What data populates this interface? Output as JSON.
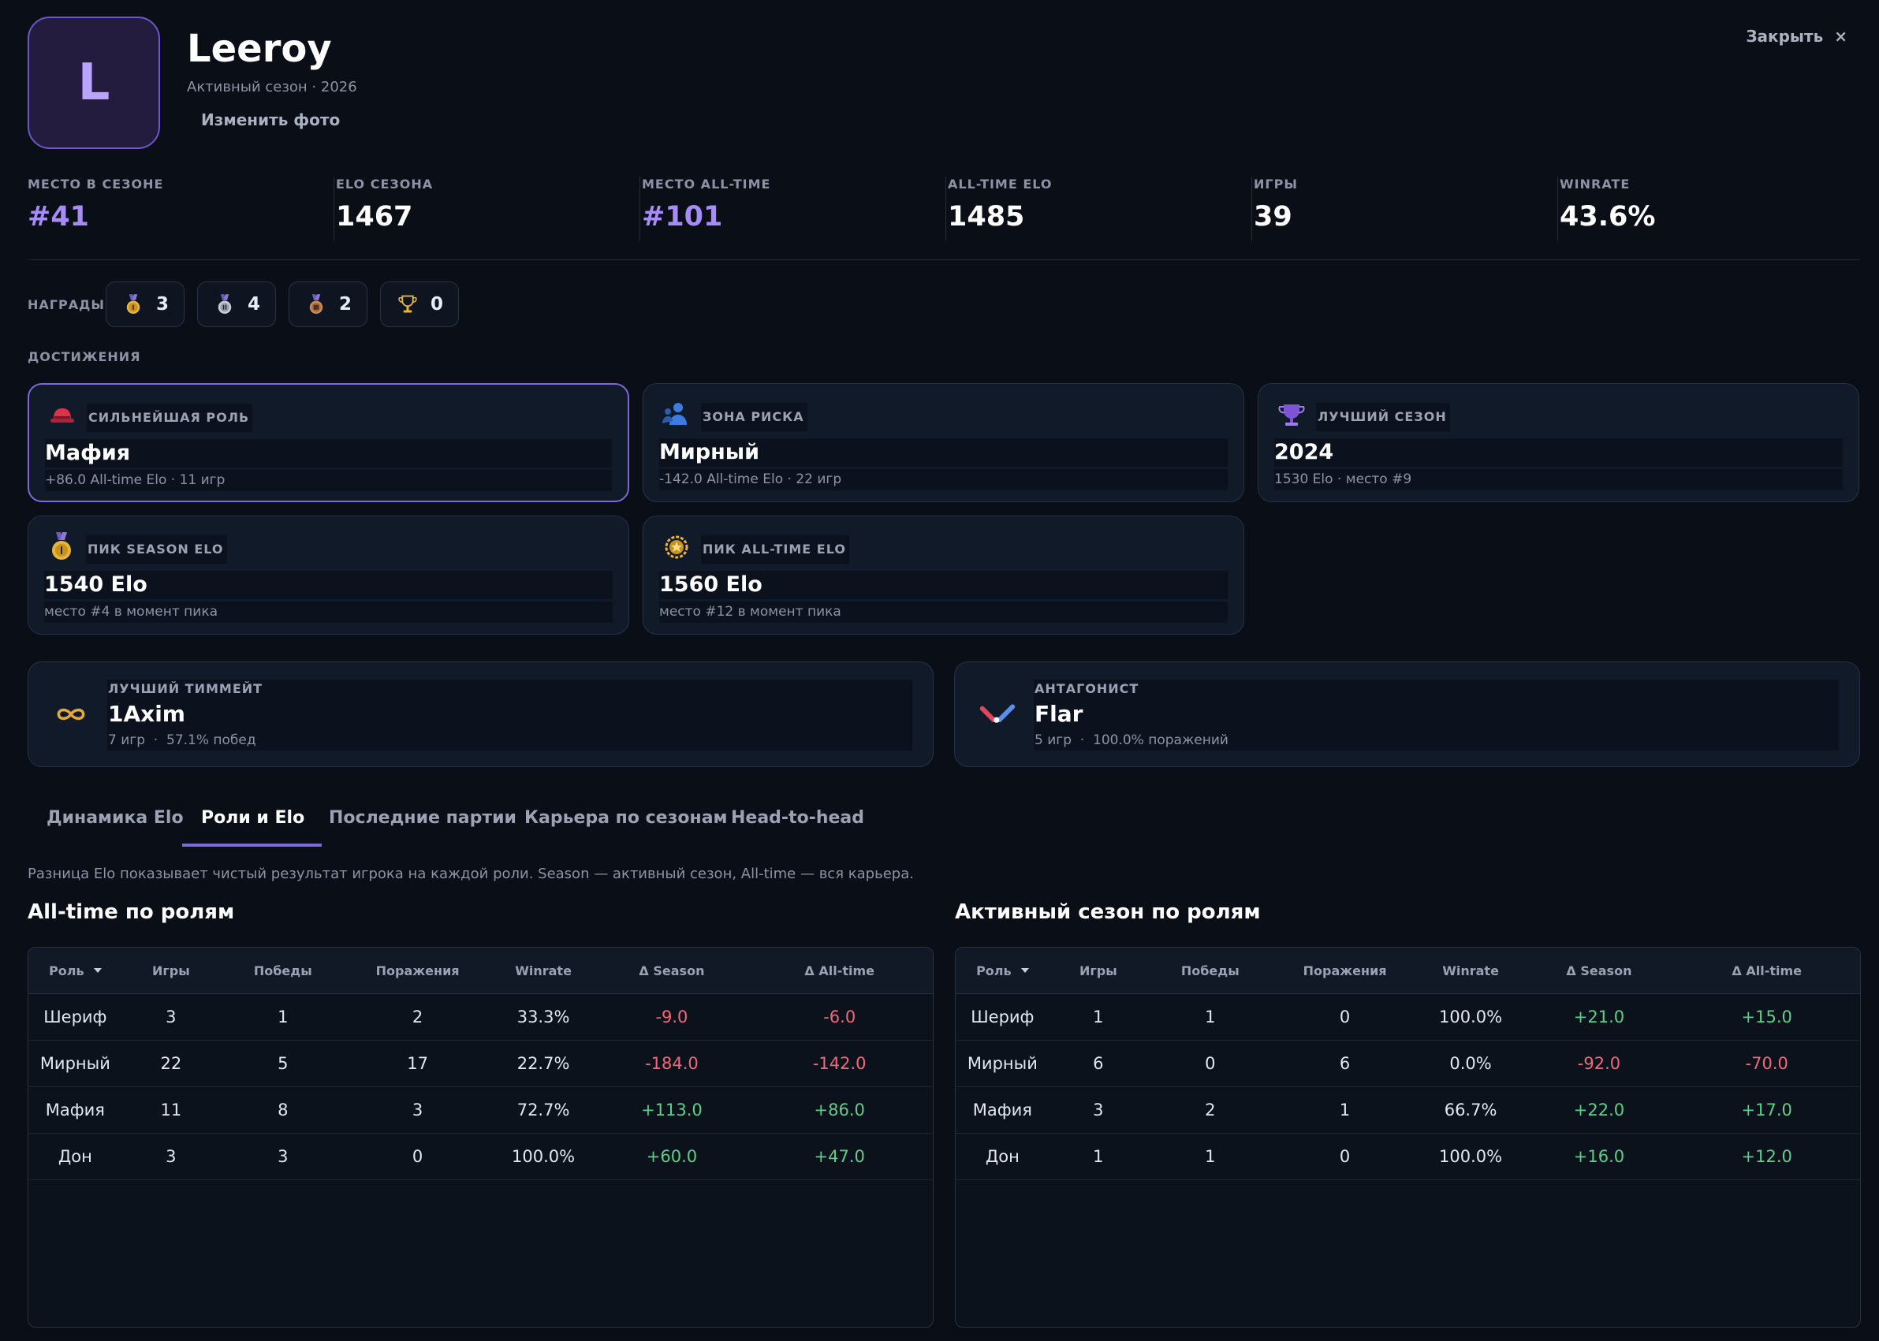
{
  "header": {
    "avatar": "L",
    "name": "Leeroy",
    "subtitle": "Активный сезон · 2026",
    "change_photo": "Изменить фото",
    "close": "Закрыть",
    "close_icon": "×"
  },
  "stats": [
    {
      "label": "МЕСТО В СЕЗОНЕ",
      "value": "#41",
      "accent": true
    },
    {
      "label": "ELO СЕЗОНА",
      "value": "1467",
      "accent": false
    },
    {
      "label": "МЕСТО ALL-TIME",
      "value": "#101",
      "accent": true
    },
    {
      "label": "ALL-TIME ELO",
      "value": "1485",
      "accent": false
    },
    {
      "label": "ИГРЫ",
      "value": "39",
      "accent": false
    },
    {
      "label": "WINRATE",
      "value": "43.6%",
      "accent": false
    }
  ],
  "awards": {
    "label": "НАГРАДЫ",
    "items": [
      {
        "kind": "gold",
        "count": 3
      },
      {
        "kind": "silver",
        "count": 4
      },
      {
        "kind": "bronze",
        "count": 2
      },
      {
        "kind": "trophy",
        "count": 0
      }
    ]
  },
  "achievements": {
    "label": "ДОСТИЖЕНИЯ",
    "cards": [
      {
        "icon": "hat",
        "title": "СИЛЬНЕЙШАЯ РОЛЬ",
        "value": "Мафия",
        "detail": "+86.0 All-time Elo · 11 игр",
        "highlight": true
      },
      {
        "icon": "people",
        "title": "ЗОНА РИСКА",
        "value": "Мирный",
        "detail": "-142.0 All-time Elo · 22 игр",
        "highlight": false
      },
      {
        "icon": "cup",
        "title": "ЛУЧШИЙ СЕЗОН",
        "value": "2024",
        "detail": "1530 Elo · место #9",
        "highlight": false
      },
      {
        "icon": "medal",
        "title": "ПИК SEASON ELO",
        "value": "1540 Elo",
        "detail": "место #4 в момент пика",
        "highlight": false
      },
      {
        "icon": "star",
        "title": "ПИК ALL-TIME ELO",
        "value": "1560 Elo",
        "detail": "место #12 в момент пика",
        "highlight": false
      }
    ]
  },
  "partners": [
    {
      "icon": "infinity",
      "title": "ЛУЧШИЙ ТИММЕЙТ",
      "name": "1Axim",
      "detail": "7 игр  ·  57.1% побед"
    },
    {
      "icon": "versus",
      "title": "АНТАГОНИСТ",
      "name": "Flar",
      "detail": "5 игр  ·  100.0% поражений"
    }
  ],
  "tabs": [
    "Динамика Elo",
    "Роли и Elo",
    "Последние партии",
    "Карьера по сезонам",
    "Head-to-head"
  ],
  "active_tab": 1,
  "note": "Разница Elo показывает чистый результат игрока на каждой роли. Season — активный сезон, All-time — вся карьера.",
  "tables": [
    {
      "title": "All-time по ролям",
      "columns": [
        "Роль",
        "Игры",
        "Победы",
        "Поражения",
        "Winrate",
        "Δ Season",
        "Δ All-time"
      ],
      "rows": [
        [
          "Шериф",
          3,
          1,
          2,
          "33.3%",
          "-9.0",
          "-6.0"
        ],
        [
          "Мирный",
          22,
          5,
          17,
          "22.7%",
          "-184.0",
          "-142.0"
        ],
        [
          "Мафия",
          11,
          8,
          3,
          "72.7%",
          "+113.0",
          "+86.0"
        ],
        [
          "Дон",
          3,
          3,
          0,
          "100.0%",
          "+60.0",
          "+47.0"
        ]
      ]
    },
    {
      "title": "Активный сезон по ролям",
      "columns": [
        "Роль",
        "Игры",
        "Победы",
        "Поражения",
        "Winrate",
        "Δ Season",
        "Δ All-time"
      ],
      "rows": [
        [
          "Шериф",
          1,
          1,
          0,
          "100.0%",
          "+21.0",
          "+15.0"
        ],
        [
          "Мирный",
          6,
          0,
          6,
          "0.0%",
          "-92.0",
          "-70.0"
        ],
        [
          "Мафия",
          3,
          2,
          1,
          "66.7%",
          "+22.0",
          "+17.0"
        ],
        [
          "Дон",
          1,
          1,
          0,
          "100.0%",
          "+16.0",
          "+12.0"
        ]
      ]
    }
  ]
}
